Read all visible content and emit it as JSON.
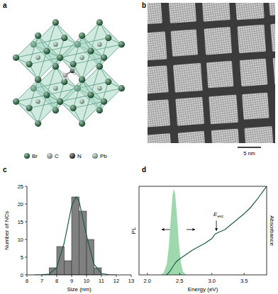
{
  "panel_a": {
    "label": "a",
    "legend": [
      {
        "symbol": "Br",
        "color": "#1f6b3c"
      },
      {
        "symbol": "C",
        "color": "#b8b8b8"
      },
      {
        "symbol": "N",
        "color": "#2b2b2b"
      },
      {
        "symbol": "Pb",
        "color": "#9cc7b2"
      }
    ]
  },
  "panel_b": {
    "label": "b",
    "scale_bar": "5 nm"
  },
  "chart_data": [
    {
      "type": "histogram",
      "title": "c",
      "x_label": "Size (nm)",
      "y_label": "Number of NCs",
      "bins": [
        7.5,
        8,
        8.5,
        9,
        9.5,
        10,
        10.5,
        11
      ],
      "values": [
        2,
        8,
        4,
        22,
        18,
        10,
        2
      ],
      "color": "#808080",
      "xlim": [
        6,
        13
      ],
      "xticks": [
        6,
        7,
        8,
        9,
        10,
        11,
        12,
        13
      ],
      "ylim": [
        0,
        25
      ],
      "yticks": [
        0,
        5,
        10,
        15,
        20,
        25
      ],
      "fit": {
        "type": "line",
        "color": "#1d5c45",
        "x": [
          6.5,
          7,
          7.5,
          8,
          8.5,
          9,
          9.3,
          9.5,
          10,
          10.5,
          11,
          11.5,
          12
        ],
        "values": [
          0,
          0.02,
          0.24,
          2.1,
          9.0,
          19.4,
          22,
          20.8,
          11.1,
          3.0,
          0.4,
          0.03,
          0
        ]
      }
    },
    {
      "type": "line",
      "title": "d",
      "x_label": "Energy (eV)",
      "y_label": "PL",
      "y2_label": "Absorbance",
      "xlim": [
        1.87,
        3.85
      ],
      "xticks": [
        {
          "value": 2,
          "label": "2.0"
        },
        2.5,
        {
          "value": 3,
          "label": "3.0"
        },
        3.5
      ],
      "ylim": [
        0,
        1
      ],
      "y2lim": [
        0,
        1
      ],
      "tick_labels": "x",
      "series": [
        {
          "type": "area",
          "color": "#9ed9ad",
          "x": [
            2.2,
            2.25,
            2.3,
            2.33,
            2.36,
            2.39,
            2.41,
            2.43,
            2.46,
            2.49,
            2.52,
            2.55,
            2.6
          ],
          "values": [
            0,
            0.02,
            0.12,
            0.3,
            0.6,
            0.9,
            0.97,
            0.92,
            0.65,
            0.35,
            0.14,
            0.04,
            0
          ]
        },
        {
          "type": "line",
          "axis": "y2",
          "color": "#1d5c45",
          "x": [
            2.3,
            2.35,
            2.4,
            2.45,
            2.5,
            2.6,
            2.7,
            2.8,
            2.9,
            3.0,
            3.05,
            3.1,
            3.2,
            3.3,
            3.4,
            3.5,
            3.6,
            3.7,
            3.85
          ],
          "values": [
            0,
            0.04,
            0.1,
            0.15,
            0.18,
            0.23,
            0.28,
            0.32,
            0.36,
            0.41,
            0.46,
            0.48,
            0.51,
            0.57,
            0.63,
            0.69,
            0.76,
            0.85,
            1.0
          ]
        }
      ],
      "annotations": [
        {
          "text": "E",
          "subscript": "exc",
          "x": 3.07,
          "y": 0.47
        }
      ]
    }
  ]
}
